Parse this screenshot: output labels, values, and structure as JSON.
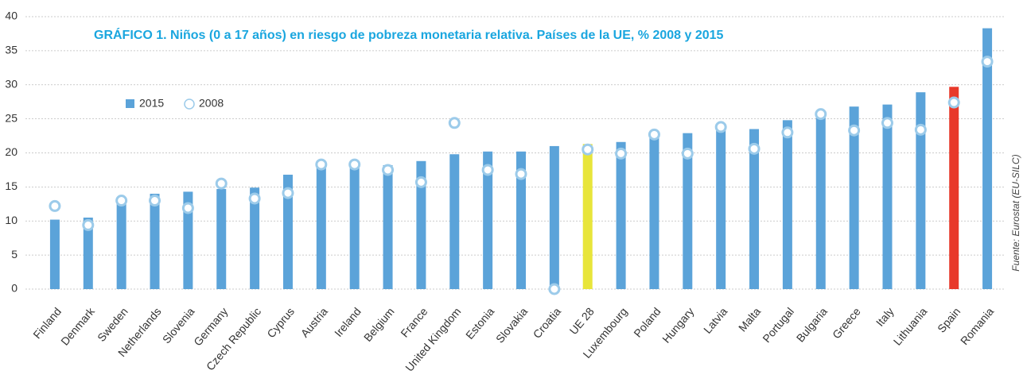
{
  "chart_data": {
    "type": "bar",
    "title": "GRÁFICO 1. Niños (0 a 17 años) en riesgo de pobreza monetaria relativa. Países de la UE, % 2008 y 2015",
    "source": "Fuente: Eurostat (EU-SILC)",
    "categories": [
      "Finland",
      "Denmark",
      "Sweden",
      "Netherlands",
      "Slovenia",
      "Germany",
      "Czech Republic",
      "Cyprus",
      "Austria",
      "Ireland",
      "Belgium",
      "France",
      "United Kingdom",
      "Estonia",
      "Slovakia",
      "Croatia",
      "UE 28",
      "Luxembourg",
      "Poland",
      "Hungary",
      "Latvia",
      "Malta",
      "Portugal",
      "Bulgaria",
      "Greece",
      "Italy",
      "Lithuania",
      "Spain",
      "Romania"
    ],
    "series": [
      {
        "name": "2015",
        "color": "#5ba3d9",
        "colors": [
          "#5ba3d9",
          "#5ba3d9",
          "#5ba3d9",
          "#5ba3d9",
          "#5ba3d9",
          "#5ba3d9",
          "#5ba3d9",
          "#5ba3d9",
          "#5ba3d9",
          "#5ba3d9",
          "#5ba3d9",
          "#5ba3d9",
          "#5ba3d9",
          "#5ba3d9",
          "#5ba3d9",
          "#5ba3d9",
          "#e8e53a",
          "#5ba3d9",
          "#5ba3d9",
          "#5ba3d9",
          "#5ba3d9",
          "#5ba3d9",
          "#5ba3d9",
          "#5ba3d9",
          "#5ba3d9",
          "#5ba3d9",
          "#5ba3d9",
          "#e8392a",
          "#5ba3d9"
        ],
        "values": [
          10.2,
          10.5,
          13.0,
          14.0,
          14.3,
          14.7,
          14.9,
          16.8,
          18.5,
          18.5,
          18.2,
          18.8,
          19.8,
          20.2,
          20.2,
          21.0,
          21.3,
          21.6,
          23.0,
          22.9,
          24.1,
          23.5,
          24.8,
          26.0,
          26.8,
          27.1,
          28.9,
          29.7,
          38.3
        ]
      },
      {
        "name": "2008",
        "color": "#9ccbea",
        "marker": "circle",
        "values": [
          12.2,
          9.4,
          13.0,
          13.0,
          11.9,
          15.5,
          13.3,
          14.1,
          18.3,
          18.3,
          17.5,
          15.7,
          24.4,
          17.5,
          16.9,
          0,
          20.5,
          19.9,
          22.7,
          19.9,
          23.8,
          20.6,
          23.0,
          25.7,
          23.3,
          24.4,
          23.4,
          27.4,
          33.4
        ]
      }
    ],
    "ylim": [
      0,
      40
    ],
    "yticks": [
      0,
      5,
      10,
      15,
      20,
      25,
      30,
      35,
      40
    ],
    "grid": true
  }
}
